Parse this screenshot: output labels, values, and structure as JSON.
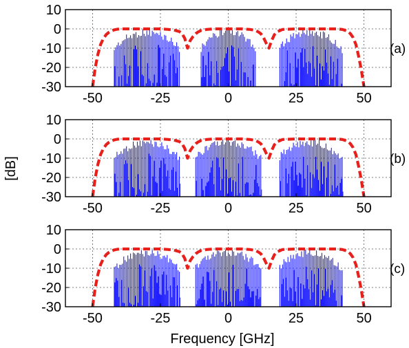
{
  "figure": {
    "xlabel": "Frequency [GHz]",
    "ylabel": "[dB]"
  },
  "chart_data": [
    {
      "type": "line",
      "panel_label": "(a)",
      "xlim": [
        -60,
        60
      ],
      "ylim": [
        -30,
        10
      ],
      "x_ticks": [
        -50,
        -25,
        0,
        25,
        50
      ],
      "x_tick_labels": [
        "-50",
        "-25",
        "0",
        "25",
        "50"
      ],
      "y_ticks": [
        10,
        0,
        -10,
        -20,
        -30
      ],
      "y_tick_labels": [
        "10",
        "0",
        "-10",
        "-20",
        "-30"
      ],
      "grid": true,
      "spectrum": {
        "color": "#1f1fff",
        "channels": [
          {
            "center": -30,
            "x_range": [
              -42,
              -18
            ],
            "peak_db": 0
          },
          {
            "center": 0,
            "x_range": [
              -10,
              10
            ],
            "peak_db": 0
          },
          {
            "center": 30,
            "x_range": [
              19,
              42
            ],
            "peak_db": 0
          }
        ]
      },
      "filter_response": {
        "color": "#e8201c",
        "style": "dashed",
        "x": [
          -50,
          -49,
          -48,
          -47,
          -46,
          -45,
          -44,
          -43,
          -42,
          -41,
          -40,
          -38,
          -35,
          -30,
          -25,
          -22,
          -20,
          -18,
          -17,
          -16,
          -15,
          -14,
          -13,
          -12,
          -11,
          -10,
          -8,
          -5,
          0,
          5,
          8,
          10,
          11,
          12,
          13,
          14,
          15,
          16,
          17,
          18,
          20,
          25,
          30,
          35,
          40,
          42,
          44,
          45,
          46,
          47,
          48,
          49,
          50
        ],
        "y": [
          -30,
          -20,
          -13,
          -8,
          -5,
          -3,
          -1.8,
          -1,
          -0.5,
          -0.2,
          0,
          0,
          0,
          0,
          0,
          -0.3,
          -0.6,
          -1.4,
          -2.5,
          -5,
          -10,
          -6,
          -4,
          -2.5,
          -1.5,
          -0.8,
          -0.3,
          0,
          0,
          0,
          -0.3,
          -0.8,
          -1.5,
          -2.5,
          -4.5,
          -7.5,
          -10,
          -6,
          -3,
          -1.5,
          -0.3,
          0,
          0,
          0,
          0,
          -0.3,
          -1.2,
          -2.5,
          -4.5,
          -8,
          -14,
          -21,
          -30
        ]
      }
    },
    {
      "type": "line",
      "panel_label": "(b)",
      "xlim": [
        -60,
        60
      ],
      "ylim": [
        -30,
        10
      ],
      "x_ticks": [
        -50,
        -25,
        0,
        25,
        50
      ],
      "x_tick_labels": [
        "-50",
        "-25",
        "0",
        "25",
        "50"
      ],
      "y_ticks": [
        10,
        0,
        -10,
        -20,
        -30
      ],
      "y_tick_labels": [
        "10",
        "0",
        "-10",
        "-20",
        "-30"
      ],
      "grid": true,
      "spectrum": {
        "color": "#1f1fff",
        "channels": [
          {
            "center": -30,
            "x_range": [
              -42,
              -18
            ],
            "peak_db": 0
          },
          {
            "center": 0,
            "x_range": [
              -12,
              12
            ],
            "peak_db": 0
          },
          {
            "center": 30,
            "x_range": [
              19,
              42
            ],
            "peak_db": 0
          }
        ]
      },
      "filter_response": {
        "color": "#e8201c",
        "style": "dashed",
        "x": [
          -50,
          -49,
          -48,
          -47,
          -46,
          -45,
          -44,
          -43,
          -42,
          -41,
          -40,
          -38,
          -35,
          -30,
          -25,
          -22,
          -20,
          -18,
          -17,
          -16,
          -15,
          -14,
          -13,
          -12,
          -11,
          -10,
          -8,
          -5,
          0,
          5,
          8,
          10,
          11,
          12,
          13,
          14,
          15,
          16,
          17,
          18,
          20,
          25,
          30,
          35,
          40,
          42,
          44,
          45,
          46,
          47,
          48,
          49,
          50
        ],
        "y": [
          -30,
          -20,
          -13,
          -8,
          -5,
          -3,
          -1.8,
          -1,
          -0.5,
          -0.2,
          0,
          0,
          0,
          0,
          0,
          -0.3,
          -0.6,
          -1.4,
          -2.5,
          -5,
          -10,
          -6,
          -4,
          -2.5,
          -1.5,
          -0.8,
          -0.3,
          0,
          0,
          0,
          -0.3,
          -0.8,
          -1.5,
          -2.5,
          -4.5,
          -7.5,
          -10,
          -6,
          -3,
          -1.5,
          -0.3,
          0,
          0,
          0,
          0,
          -0.3,
          -1.2,
          -2.5,
          -4.5,
          -8,
          -14,
          -21,
          -30
        ]
      }
    },
    {
      "type": "line",
      "panel_label": "(c)",
      "xlim": [
        -60,
        60
      ],
      "ylim": [
        -30,
        10
      ],
      "x_ticks": [
        -50,
        -25,
        0,
        25,
        50
      ],
      "x_tick_labels": [
        "-50",
        "-25",
        "0",
        "25",
        "50"
      ],
      "y_ticks": [
        10,
        0,
        -10,
        -20,
        -30
      ],
      "y_tick_labels": [
        "10",
        "0",
        "-10",
        "-20",
        "-30"
      ],
      "grid": true,
      "spectrum": {
        "color": "#1f1fff",
        "channels": [
          {
            "center": -30,
            "x_range": [
              -42,
              -18
            ],
            "peak_db": 0
          },
          {
            "center": 0,
            "x_range": [
              -12,
              12
            ],
            "peak_db": 0
          },
          {
            "center": 30,
            "x_range": [
              19,
              42
            ],
            "peak_db": 0
          }
        ]
      },
      "filter_response": {
        "color": "#e8201c",
        "style": "dashed",
        "x": [
          -50,
          -49,
          -48,
          -47,
          -46,
          -45,
          -44,
          -43,
          -42,
          -41,
          -40,
          -38,
          -35,
          -30,
          -25,
          -22,
          -20,
          -18,
          -17,
          -16,
          -15,
          -14,
          -13,
          -12,
          -11,
          -10,
          -8,
          -5,
          0,
          5,
          8,
          10,
          11,
          12,
          13,
          14,
          15,
          16,
          17,
          18,
          20,
          25,
          30,
          35,
          40,
          42,
          44,
          45,
          46,
          47,
          48,
          49,
          50
        ],
        "y": [
          -30,
          -20,
          -13,
          -8,
          -5,
          -3,
          -1.8,
          -1,
          -0.5,
          -0.2,
          0,
          0,
          0,
          0,
          0,
          -0.3,
          -0.6,
          -1.4,
          -2.5,
          -5,
          -10,
          -6,
          -4,
          -2.5,
          -1.5,
          -0.8,
          -0.3,
          0,
          0,
          0,
          -0.3,
          -0.8,
          -1.5,
          -2.5,
          -4.5,
          -7.5,
          -10,
          -6,
          -3,
          -1.5,
          -0.3,
          0,
          0,
          0,
          0,
          -0.3,
          -1.2,
          -2.5,
          -4.5,
          -8,
          -14,
          -21,
          -30
        ]
      }
    }
  ]
}
